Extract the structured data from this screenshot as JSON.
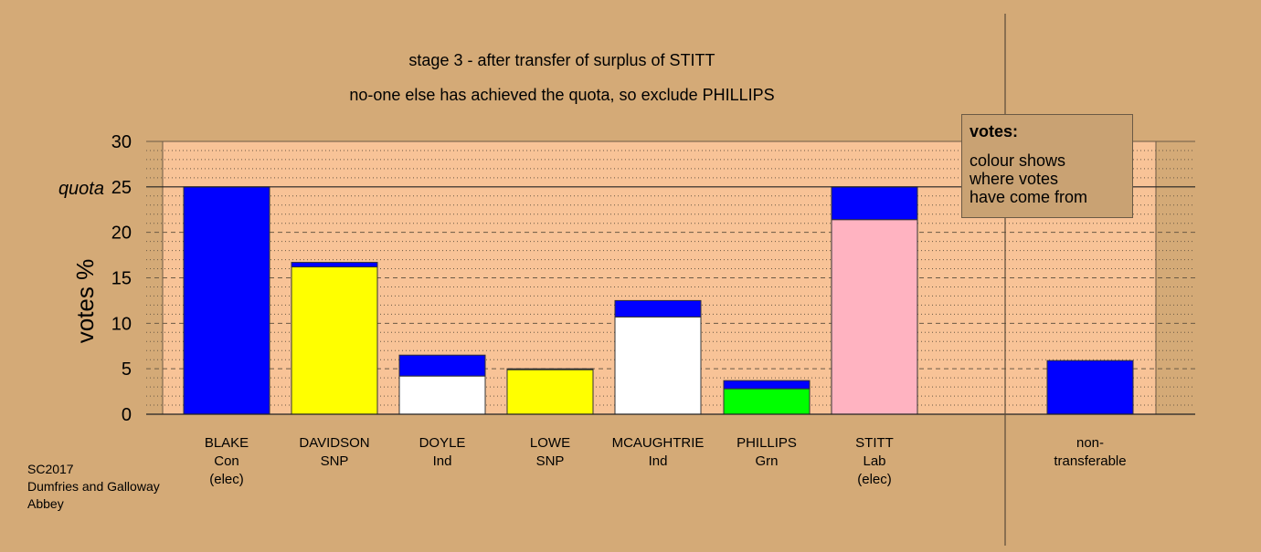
{
  "title_line1": "stage 3 - after transfer of surplus of STITT",
  "title_line2": "no-one else has achieved the quota, so exclude PHILLIPS",
  "legend": {
    "title": "votes:",
    "lines": [
      "colour shows",
      "where votes",
      "have come from"
    ]
  },
  "source": [
    "SC2017",
    "Dumfries and Galloway",
    "Abbey"
  ],
  "colors": {
    "background": "#d4aa77",
    "plot_area": "#f8c397",
    "Con": "#0000ff",
    "SNP": "#ffff00",
    "Ind": "#ffffff",
    "Grn": "#00ff00",
    "Lab": "#ffb3c1"
  },
  "chart_data": {
    "type": "bar",
    "stacked": true,
    "title": "stage 3 - after transfer of surplus of STITT",
    "subtitle": "no-one else has achieved the quota, so exclude PHILLIPS",
    "ylabel": "votes %",
    "ylim": [
      0,
      30
    ],
    "yticks": [
      0,
      5,
      10,
      15,
      20,
      25,
      30
    ],
    "quota": {
      "label": "quota",
      "value": 25
    },
    "grid": true,
    "legend_position": "top-right",
    "categories": [
      {
        "label": [
          "BLAKE",
          "Con",
          "(elec)"
        ],
        "segments": [
          {
            "value": 25.0,
            "color": "#0000ff"
          }
        ]
      },
      {
        "label": [
          "DAVIDSON",
          "SNP"
        ],
        "segments": [
          {
            "value": 16.2,
            "color": "#ffff00"
          },
          {
            "value": 0.5,
            "color": "#0000ff"
          }
        ]
      },
      {
        "label": [
          "DOYLE",
          "Ind"
        ],
        "segments": [
          {
            "value": 4.2,
            "color": "#ffffff"
          },
          {
            "value": 2.3,
            "color": "#0000ff"
          }
        ]
      },
      {
        "label": [
          "LOWE",
          "SNP"
        ],
        "segments": [
          {
            "value": 4.9,
            "color": "#ffff00"
          },
          {
            "value": 0.1,
            "color": "#0000ff"
          }
        ]
      },
      {
        "label": [
          "MCAUGHTRIE",
          "Ind"
        ],
        "segments": [
          {
            "value": 10.7,
            "color": "#ffffff"
          },
          {
            "value": 1.8,
            "color": "#0000ff"
          }
        ]
      },
      {
        "label": [
          "PHILLIPS",
          "Grn"
        ],
        "segments": [
          {
            "value": 2.8,
            "color": "#00ff00"
          },
          {
            "value": 0.9,
            "color": "#0000ff"
          }
        ]
      },
      {
        "label": [
          "STITT",
          "Lab",
          "(elec)"
        ],
        "segments": [
          {
            "value": 21.4,
            "color": "#ffb3c1"
          },
          {
            "value": 3.6,
            "color": "#0000ff"
          }
        ]
      },
      {
        "label": [
          "non-",
          "transferable"
        ],
        "segments": [
          {
            "value": 5.9,
            "color": "#0000ff"
          }
        ]
      }
    ]
  }
}
